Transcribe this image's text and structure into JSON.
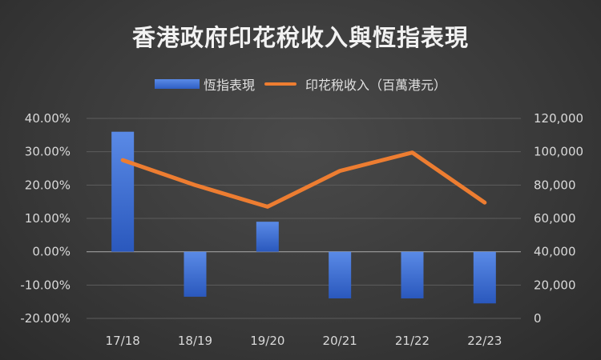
{
  "chart_data": {
    "type": "bar+line",
    "title": "香港政府印花稅收入與恆指表現",
    "categories": [
      "17/18",
      "18/19",
      "19/20",
      "20/21",
      "21/22",
      "22/23"
    ],
    "series": [
      {
        "name": "恆指表現",
        "type": "bar",
        "axis": "left",
        "color": "#3f6fd6",
        "values": [
          36.0,
          -13.5,
          9.0,
          -14.0,
          -14.0,
          -15.5
        ]
      },
      {
        "name": "印花稅收入（百萬港元）",
        "type": "line",
        "axis": "right",
        "color": "#ed7d31",
        "values": [
          95000,
          80000,
          67000,
          88500,
          99500,
          69500
        ]
      }
    ],
    "y_left": {
      "ylim": [
        -20,
        40
      ],
      "ticks": [
        "40.00%",
        "30.00%",
        "20.00%",
        "10.00%",
        "0.00%",
        "-10.00%",
        "-20.00%"
      ]
    },
    "y_right": {
      "ylim": [
        0,
        120000
      ],
      "ticks": [
        "120,000",
        "100,000",
        "80,000",
        "60,000",
        "40,000",
        "20,000",
        "0"
      ]
    },
    "grid": true,
    "legend_position": "top"
  }
}
